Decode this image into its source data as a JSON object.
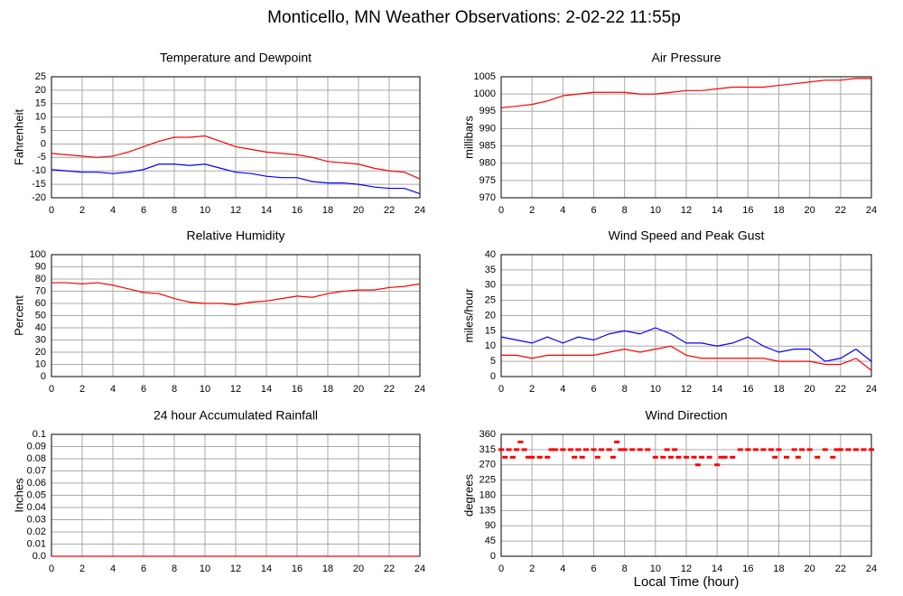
{
  "title": "Monticello, MN Weather Observations: 2-02-22 11:55p",
  "chart_data": [
    {
      "type": "line",
      "title": "Temperature and Dewpoint",
      "ylabel": "Fahrenheit",
      "x": [
        0,
        1,
        2,
        3,
        4,
        5,
        6,
        7,
        8,
        9,
        10,
        11,
        12,
        13,
        14,
        15,
        16,
        17,
        18,
        19,
        20,
        21,
        22,
        23,
        24
      ],
      "series": [
        {
          "color": "#ff0000",
          "values": [
            -3.5,
            -4,
            -4.5,
            -5,
            -4.5,
            -3,
            -1,
            1,
            2.5,
            2.5,
            3,
            1,
            -1,
            -2,
            -3,
            -3.5,
            -4,
            -5,
            -6.5,
            -7,
            -7.5,
            -9,
            -10,
            -10.5,
            -13
          ]
        },
        {
          "color": "#0000ff",
          "values": [
            -9.5,
            -10,
            -10.5,
            -10.5,
            -11,
            -10.5,
            -9.5,
            -7.5,
            -7.5,
            -8,
            -7.5,
            -9,
            -10.5,
            -11,
            -12,
            -12.5,
            -12.5,
            -14,
            -14.5,
            -14.5,
            -15,
            -16,
            -16.5,
            -16.5,
            -18.5
          ]
        }
      ],
      "xlim": [
        0,
        24
      ],
      "xticks": [
        0,
        2,
        4,
        6,
        8,
        10,
        12,
        14,
        16,
        18,
        20,
        22,
        24
      ],
      "ylim": [
        -20,
        25
      ],
      "yticks": [
        -20,
        -15,
        -10,
        -5,
        0,
        5,
        10,
        15,
        20,
        25
      ],
      "grid": true
    },
    {
      "type": "line",
      "title": "Air Pressure",
      "ylabel": "millibars",
      "x": [
        0,
        1,
        2,
        3,
        4,
        5,
        6,
        7,
        8,
        9,
        10,
        11,
        12,
        13,
        14,
        15,
        16,
        17,
        18,
        19,
        20,
        21,
        22,
        23,
        24
      ],
      "series": [
        {
          "color": "#ff0000",
          "values": [
            996,
            996.5,
            997,
            998,
            999.5,
            1000,
            1000.5,
            1000.5,
            1000.5,
            1000,
            1000,
            1000.5,
            1001,
            1001,
            1001.5,
            1002,
            1002,
            1002,
            1002.5,
            1003,
            1003.5,
            1004,
            1004,
            1004.5,
            1004.5
          ]
        }
      ],
      "xlim": [
        0,
        24
      ],
      "xticks": [
        0,
        2,
        4,
        6,
        8,
        10,
        12,
        14,
        16,
        18,
        20,
        22,
        24
      ],
      "ylim": [
        970,
        1005
      ],
      "yticks": [
        970,
        975,
        980,
        985,
        990,
        995,
        1000,
        1005
      ],
      "grid": true
    },
    {
      "type": "line",
      "title": "Relative Humidity",
      "ylabel": "Percent",
      "x": [
        0,
        1,
        2,
        3,
        4,
        5,
        6,
        7,
        8,
        9,
        10,
        11,
        12,
        13,
        14,
        15,
        16,
        17,
        18,
        19,
        20,
        21,
        22,
        23,
        24
      ],
      "series": [
        {
          "color": "#ff0000",
          "values": [
            77,
            77,
            76,
            77,
            75,
            72,
            69,
            68,
            64,
            61,
            60,
            60,
            59,
            61,
            62,
            64,
            66,
            65,
            68,
            70,
            71,
            71,
            73,
            74,
            76
          ]
        }
      ],
      "xlim": [
        0,
        24
      ],
      "xticks": [
        0,
        2,
        4,
        6,
        8,
        10,
        12,
        14,
        16,
        18,
        20,
        22,
        24
      ],
      "ylim": [
        0,
        100
      ],
      "yticks": [
        0,
        10,
        20,
        30,
        40,
        50,
        60,
        70,
        80,
        90,
        100
      ],
      "grid": true
    },
    {
      "type": "line",
      "title": "Wind Speed and Peak Gust",
      "ylabel": "miles/hour",
      "x": [
        0,
        1,
        2,
        3,
        4,
        5,
        6,
        7,
        8,
        9,
        10,
        11,
        12,
        13,
        14,
        15,
        16,
        17,
        18,
        19,
        20,
        21,
        22,
        23,
        24
      ],
      "series": [
        {
          "color": "#0000ff",
          "values": [
            13,
            12,
            11,
            13,
            11,
            13,
            12,
            14,
            15,
            14,
            16,
            14,
            11,
            11,
            10,
            11,
            13,
            10,
            8,
            9,
            9,
            5,
            6,
            9,
            5
          ]
        },
        {
          "color": "#ff0000",
          "values": [
            7,
            7,
            6,
            7,
            7,
            7,
            7,
            8,
            9,
            8,
            9,
            10,
            7,
            6,
            6,
            6,
            6,
            6,
            5,
            5,
            5,
            4,
            4,
            6,
            2
          ]
        }
      ],
      "xlim": [
        0,
        24
      ],
      "xticks": [
        0,
        2,
        4,
        6,
        8,
        10,
        12,
        14,
        16,
        18,
        20,
        22,
        24
      ],
      "ylim": [
        0,
        40
      ],
      "yticks": [
        0,
        5,
        10,
        15,
        20,
        25,
        30,
        35,
        40
      ],
      "grid": true
    },
    {
      "type": "line",
      "title": "24 hour Accumulated Rainfall",
      "ylabel": "Inches",
      "x": [
        0,
        1,
        2,
        3,
        4,
        5,
        6,
        7,
        8,
        9,
        10,
        11,
        12,
        13,
        14,
        15,
        16,
        17,
        18,
        19,
        20,
        21,
        22,
        23,
        24
      ],
      "series": [
        {
          "color": "#ff0000",
          "values": [
            0,
            0,
            0,
            0,
            0,
            0,
            0,
            0,
            0,
            0,
            0,
            0,
            0,
            0,
            0,
            0,
            0,
            0,
            0,
            0,
            0,
            0,
            0,
            0,
            0
          ]
        }
      ],
      "xlim": [
        0,
        24
      ],
      "xticks": [
        0,
        2,
        4,
        6,
        8,
        10,
        12,
        14,
        16,
        18,
        20,
        22,
        24
      ],
      "ylim": [
        0,
        0.1
      ],
      "yticks": [
        {
          "value": 0,
          "label": "0.0"
        },
        0.01,
        0.02,
        0.03,
        0.04,
        0.05,
        0.06,
        0.07,
        0.08,
        0.09,
        0.1
      ],
      "grid": true
    },
    {
      "type": "scatter",
      "title": "Wind Direction",
      "ylabel": "degrees",
      "xlabel": "Local Time (hour)",
      "x": [
        0,
        0.25,
        0.5,
        0.75,
        1,
        1.25,
        1.5,
        1.75,
        2,
        2.5,
        3,
        3.25,
        3.5,
        4,
        4.5,
        4.75,
        5,
        5.25,
        5.5,
        6,
        6.25,
        6.5,
        7,
        7.25,
        7.5,
        7.75,
        8,
        8.5,
        9,
        9.5,
        10,
        10.5,
        10.75,
        11,
        11.25,
        11.5,
        12,
        12.5,
        12.75,
        13,
        13.5,
        14,
        14.25,
        14.5,
        15,
        15.5,
        16,
        16.5,
        17,
        17.5,
        17.75,
        18,
        18.5,
        19,
        19.25,
        19.5,
        20,
        20.5,
        21,
        21.5,
        21.75,
        22,
        22.5,
        23,
        23.5,
        24
      ],
      "series": [
        {
          "color": "#ff0000",
          "values": [
            315,
            292.5,
            315,
            292.5,
            315,
            337.5,
            315,
            292.5,
            292.5,
            292.5,
            292.5,
            315,
            315,
            315,
            315,
            292.5,
            315,
            292.5,
            315,
            315,
            292.5,
            315,
            315,
            292.5,
            337.5,
            315,
            315,
            315,
            315,
            315,
            292.5,
            292.5,
            315,
            292.5,
            315,
            292.5,
            292.5,
            292.5,
            270,
            292.5,
            292.5,
            270,
            292.5,
            292.5,
            292.5,
            315,
            315,
            315,
            315,
            315,
            292.5,
            315,
            292.5,
            315,
            292.5,
            315,
            315,
            292.5,
            315,
            292.5,
            315,
            315,
            315,
            315,
            315,
            315
          ]
        }
      ],
      "xlim": [
        0,
        24
      ],
      "xticks": [
        0,
        2,
        4,
        6,
        8,
        10,
        12,
        14,
        16,
        18,
        20,
        22,
        24
      ],
      "ylim": [
        0,
        360
      ],
      "yticks": [
        0,
        45,
        90,
        135,
        180,
        225,
        270,
        315,
        360
      ],
      "grid": true
    }
  ]
}
